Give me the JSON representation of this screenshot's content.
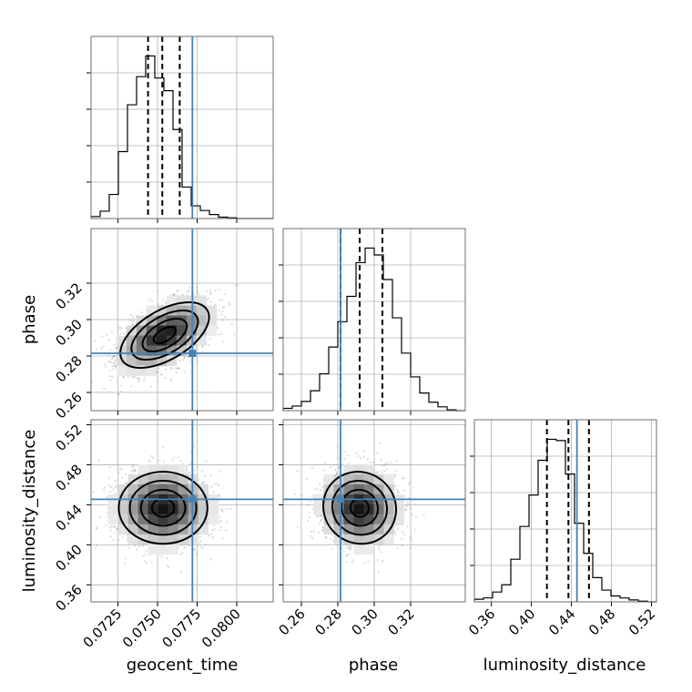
{
  "chart_data": {
    "type": "corner",
    "parameters": [
      {
        "name": "geocent_time",
        "label": "geocent_time",
        "range": [
          0.0708,
          0.0823
        ],
        "ticks": [
          0.0725,
          0.075,
          0.0775,
          0.08
        ],
        "tick_labels": [
          "0.0725",
          "0.0750",
          "0.0775",
          "0.0800"
        ],
        "truth": 0.0772,
        "quantiles": [
          0.0744,
          0.0753,
          0.0764
        ],
        "histogram": [
          0.3,
          1.1,
          3.6,
          10.0,
          17.0,
          21.2,
          24.3,
          21.0,
          19.1,
          13.3,
          4.7,
          1.9,
          1.2,
          0.6,
          0.2,
          0.1,
          0,
          0,
          0,
          0
        ]
      },
      {
        "name": "phase",
        "label": "phase",
        "range": [
          0.25,
          0.35
        ],
        "ticks": [
          0.26,
          0.28,
          0.3,
          0.32
        ],
        "tick_labels": [
          "0.26",
          "0.28",
          "0.30",
          "0.32"
        ],
        "truth": 0.2815,
        "quantiles": [
          0.2815,
          0.292,
          0.3045
        ],
        "histogram": [
          0.3,
          0.6,
          1.2,
          2.6,
          4.8,
          8.3,
          11.6,
          14.9,
          19.3,
          21.2,
          20.3,
          17.1,
          12.1,
          7.5,
          4.4,
          2.3,
          1.1,
          0.5,
          0.1,
          0
        ]
      },
      {
        "name": "luminosity_distance",
        "label": "luminosity_distance",
        "range": [
          0.343,
          0.525
        ],
        "ticks": [
          0.36,
          0.4,
          0.44,
          0.48,
          0.52
        ],
        "tick_labels": [
          "0.36",
          "0.40",
          "0.44",
          "0.48",
          "0.52"
        ],
        "truth": 0.4455,
        "quantiles": [
          0.4155,
          0.437,
          0.4575
        ],
        "histogram": [
          0.4,
          0.6,
          1.5,
          2.6,
          6.5,
          11.5,
          16.3,
          21.6,
          24.8,
          24.6,
          19.5,
          12.0,
          7.4,
          3.7,
          1.8,
          0.9,
          0.6,
          0.3,
          0.1,
          0
        ]
      }
    ],
    "y_ticks": {
      "phase": {
        "values": [
          0.26,
          0.28,
          0.3,
          0.32
        ],
        "labels": [
          "0.26",
          "0.28",
          "0.30",
          "0.32"
        ]
      },
      "luminosity_distance": {
        "values": [
          0.36,
          0.4,
          0.44,
          0.48,
          0.52
        ],
        "labels": [
          "0.36",
          "0.40",
          "0.44",
          "0.48",
          "0.52"
        ]
      }
    },
    "diag_tick_fractions": [
      0.2,
      0.4,
      0.6,
      0.8
    ],
    "pairs": [
      {
        "x": "geocent_time",
        "y": "phase",
        "mean": [
          0.07545,
          0.2915
        ],
        "sd": [
          0.0014,
          0.009
        ],
        "corr": 0.55,
        "peak_cell": [
          0.07525,
          0.2885
        ],
        "contours_sigma": [
          0.5,
          1.0,
          1.5,
          2.0
        ]
      },
      {
        "x": "geocent_time",
        "y": "luminosity_distance",
        "mean": [
          0.07535,
          0.437
        ],
        "sd": [
          0.0014,
          0.018
        ],
        "corr": 0.0,
        "peak_cell": [
          0.07535,
          0.4355
        ],
        "contours_sigma": [
          0.5,
          1.0,
          1.5,
          2.0
        ]
      },
      {
        "x": "phase",
        "y": "luminosity_distance",
        "mean": [
          0.292,
          0.437
        ],
        "sd": [
          0.01,
          0.018
        ],
        "corr": -0.05,
        "peak_cell": [
          0.2915,
          0.4355
        ],
        "contours_sigma": [
          0.5,
          1.0,
          1.5,
          2.0
        ]
      }
    ],
    "grid": true,
    "colors": {
      "truth": "#4682b4",
      "contour": "#000000",
      "density": "#000000",
      "frame": "#6e6e6e",
      "grid": "#b0b0b0"
    }
  }
}
